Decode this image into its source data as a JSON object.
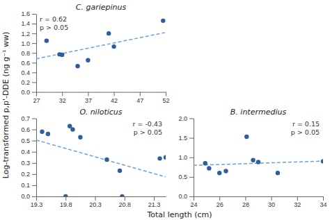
{
  "chart_data": [
    {
      "type": "scatter",
      "title": "C. gariepinus",
      "x_label": "Total length (cm)",
      "y_label": "Log-transformed p,p'-DDE (ng g⁻¹ ww)",
      "annotations": [
        "r = 0.62",
        "p > 0.05"
      ],
      "series": [
        {
          "type": "scatter",
          "marker": "circle",
          "color": "#2c5f9e",
          "x": [
            29.0,
            31.5,
            32.0,
            35.0,
            37.0,
            41.0,
            42.0,
            51.5
          ],
          "values": [
            1.05,
            0.77,
            0.76,
            0.53,
            0.65,
            1.2,
            0.93,
            1.46
          ]
        },
        {
          "type": "line",
          "line_style": "dashed",
          "color": "#6a9fd8",
          "x": [
            27,
            52
          ],
          "values": [
            0.68,
            1.22
          ]
        }
      ],
      "xlim": [
        27,
        52
      ],
      "xticks": [
        27,
        32,
        37,
        42,
        47,
        52
      ],
      "ylim": [
        0,
        1.6
      ],
      "yticks": [
        {
          "value": 0,
          "label": "0.0"
        },
        0.2,
        0.4,
        0.6,
        0.8,
        {
          "value": 1.0,
          "label": "1.0"
        },
        1.2,
        1.4,
        1.6
      ]
    },
    {
      "type": "scatter",
      "title": "O. niloticus",
      "annotations": [
        "r = -0.43",
        "p > 0.05"
      ],
      "series": [
        {
          "type": "scatter",
          "marker": "circle",
          "color": "#2c5f9e",
          "x": [
            19.4,
            19.5,
            19.8,
            19.87,
            19.92,
            20.05,
            20.5,
            20.72,
            20.76,
            21.4,
            21.5
          ],
          "values": [
            0.58,
            0.56,
            0.0,
            0.63,
            0.6,
            0.53,
            0.33,
            0.23,
            0.0,
            0.34,
            0.35
          ]
        },
        {
          "type": "line",
          "line_style": "dashed",
          "color": "#6a9fd8",
          "x": [
            19.3,
            21.5
          ],
          "values": [
            0.505,
            0.175
          ]
        }
      ],
      "xlim": [
        19.3,
        21.5
      ],
      "xticks": [
        19.3,
        19.8,
        20.3,
        20.8,
        21.3
      ],
      "ylim": [
        0,
        0.7
      ],
      "yticks": [
        {
          "value": 0,
          "label": "0.0"
        },
        0.1,
        0.2,
        0.3,
        0.4,
        0.5,
        0.6,
        0.7
      ]
    },
    {
      "type": "scatter",
      "title": "B. intermedius",
      "annotations": [
        "r = 0.15",
        "p > 0.05"
      ],
      "series": [
        {
          "type": "scatter",
          "marker": "circle",
          "color": "#2c5f9e",
          "x": [
            24.9,
            25.2,
            26.0,
            26.5,
            28.1,
            28.6,
            29.0,
            30.5,
            34.0
          ],
          "values": [
            0.85,
            0.72,
            0.6,
            0.65,
            1.53,
            0.93,
            0.88,
            0.6,
            0.9
          ]
        },
        {
          "type": "line",
          "line_style": "dashed",
          "color": "#6a9fd8",
          "x": [
            24,
            34
          ],
          "values": [
            0.795,
            0.905
          ]
        }
      ],
      "xlim": [
        24,
        34
      ],
      "xticks": [
        24,
        26,
        28,
        30,
        32,
        34
      ],
      "ylim": [
        0,
        2
      ],
      "yticks": [
        {
          "value": 0,
          "label": "0.0"
        },
        0.5,
        {
          "value": 1.0,
          "label": "1.0"
        },
        1.5,
        {
          "value": 2.0,
          "label": "2.0"
        }
      ]
    }
  ]
}
